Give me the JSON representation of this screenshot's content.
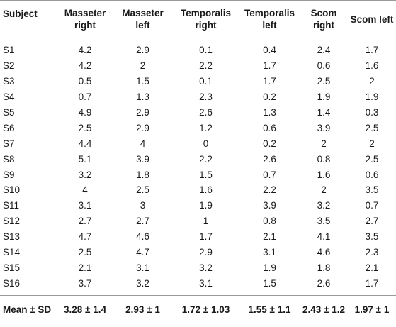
{
  "table": {
    "headers": [
      {
        "line1": "Subject",
        "line2": ""
      },
      {
        "line1": "Masseter",
        "line2": "right"
      },
      {
        "line1": "Masseter",
        "line2": "left"
      },
      {
        "line1": "Temporalis",
        "line2": "right"
      },
      {
        "line1": "Temporalis",
        "line2": "left"
      },
      {
        "line1": "Scom",
        "line2": "right"
      },
      {
        "line1": "Scom left",
        "line2": ""
      }
    ],
    "rows": [
      [
        "S1",
        "4.2",
        "2.9",
        "0.1",
        "0.4",
        "2.4",
        "1.7"
      ],
      [
        "S2",
        "4.2",
        "2",
        "2.2",
        "1.7",
        "0.6",
        "1.6"
      ],
      [
        "S3",
        "0.5",
        "1.5",
        "0.1",
        "1.7",
        "2.5",
        "2"
      ],
      [
        "S4",
        "0.7",
        "1.3",
        "2.3",
        "0.2",
        "1.9",
        "1.9"
      ],
      [
        "S5",
        "4.9",
        "2.9",
        "2.6",
        "1.3",
        "1.4",
        "0.3"
      ],
      [
        "S6",
        "2.5",
        "2.9",
        "1.2",
        "0.6",
        "3.9",
        "2.5"
      ],
      [
        "S7",
        "4.4",
        "4",
        "0",
        "0.2",
        "2",
        "2"
      ],
      [
        "S8",
        "5.1",
        "3.9",
        "2.2",
        "2.6",
        "0.8",
        "2.5"
      ],
      [
        "S9",
        "3.2",
        "1.8",
        "1.5",
        "0.7",
        "1.6",
        "0.6"
      ],
      [
        "S10",
        "4",
        "2.5",
        "1.6",
        "2.2",
        "2",
        "3.5"
      ],
      [
        "S11",
        "3.1",
        "3",
        "1.9",
        "3.9",
        "3.2",
        "0.7"
      ],
      [
        "S12",
        "2.7",
        "2.7",
        "1",
        "0.8",
        "3.5",
        "2.7"
      ],
      [
        "S13",
        "4.7",
        "4.6",
        "1.7",
        "2.1",
        "4.1",
        "3.5"
      ],
      [
        "S14",
        "2.5",
        "4.7",
        "2.9",
        "3.1",
        "4.6",
        "2.3"
      ],
      [
        "S15",
        "2.1",
        "3.1",
        "3.2",
        "1.9",
        "1.8",
        "2.1"
      ],
      [
        "S16",
        "3.7",
        "3.2",
        "3.1",
        "1.5",
        "2.6",
        "1.7"
      ]
    ],
    "footer": [
      "Mean ± SD",
      "3.28 ± 1.4",
      "2.93 ± 1",
      "1.72 ± 1.03",
      "1.55 ± 1.1",
      "2.43 ± 1.2",
      "1.97 ± 1"
    ]
  }
}
